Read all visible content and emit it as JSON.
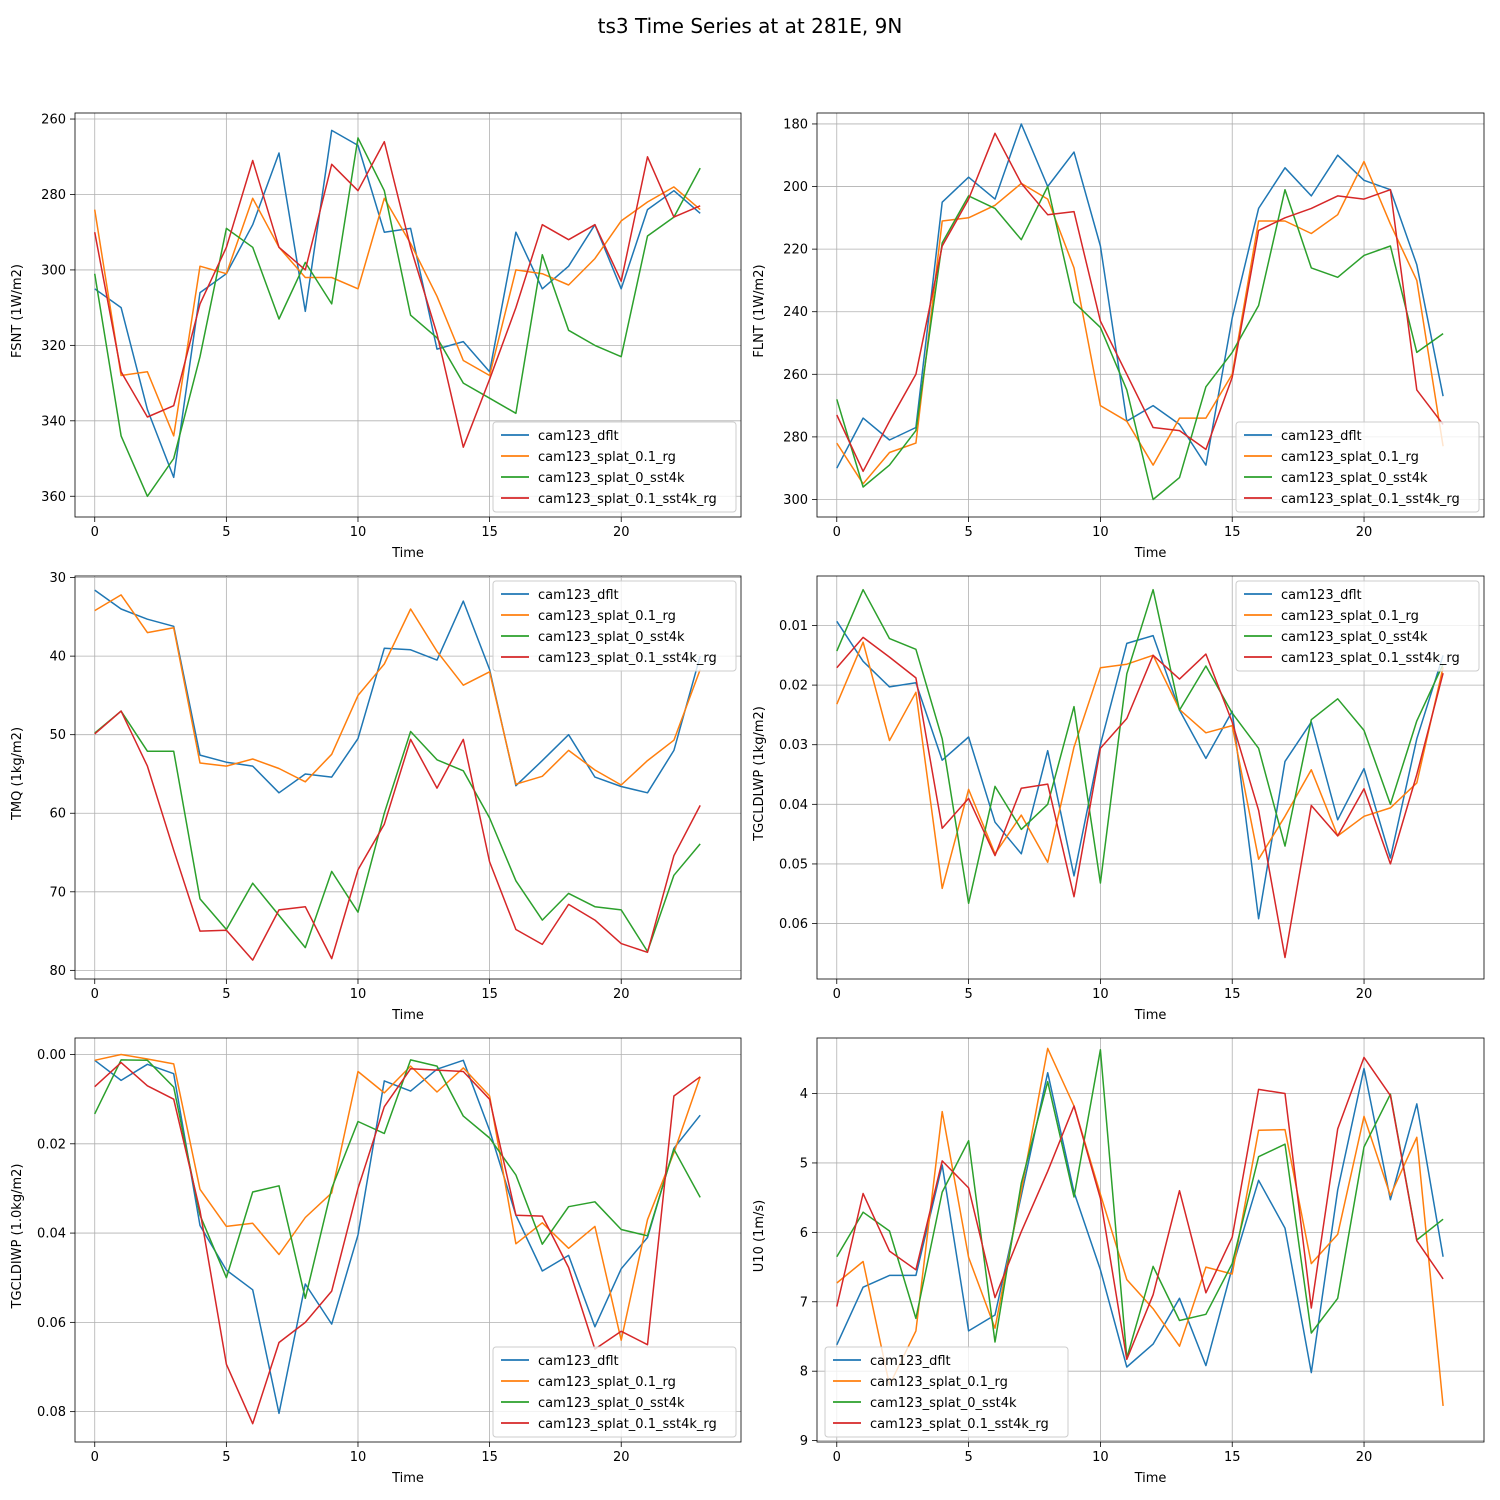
{
  "title": "ts3 Time Series at at 281E, 9N",
  "series_names": [
    "cam123_dflt",
    "cam123_splat_0.1_rg",
    "cam123_splat_0_sst4k",
    "cam123_splat_0.1_sst4k_rg"
  ],
  "colors": [
    "#1f77b4",
    "#ff7f0e",
    "#2ca02c",
    "#d62728"
  ],
  "chart_data": [
    {
      "type": "line",
      "ylabel": "FSNT (1W/m2)",
      "xlabel": "Time",
      "xlim": [
        -0.75,
        24.55
      ],
      "ylim": [
        365.5,
        258.4
      ],
      "y_inverted": true,
      "xticks": [
        0,
        5,
        10,
        15,
        20
      ],
      "yticks": [
        260,
        280,
        300,
        320,
        340,
        360
      ],
      "legend_loc": "lower-right",
      "series": [
        {
          "name": "cam123_dflt",
          "values": [
            305,
            310,
            337,
            355,
            306,
            301,
            288,
            269,
            311,
            263,
            267,
            290,
            289,
            321,
            319,
            327,
            290,
            305,
            299,
            288,
            305,
            284,
            279,
            285
          ]
        },
        {
          "name": "cam123_splat_0.1_rg",
          "values": [
            284,
            328,
            327,
            344,
            299,
            301,
            281,
            294,
            302,
            302,
            305,
            281,
            293,
            307,
            324,
            328,
            300,
            301,
            304,
            297,
            287,
            282,
            278,
            284
          ]
        },
        {
          "name": "cam123_splat_0_sst4k",
          "values": [
            301,
            344,
            360,
            350,
            323,
            289,
            294,
            313,
            298,
            309,
            265,
            279,
            312,
            318,
            330,
            334,
            338,
            296,
            316,
            320,
            323,
            291,
            286,
            273
          ]
        },
        {
          "name": "cam123_splat_0.1_sst4k_rg",
          "values": [
            290,
            327,
            339,
            336,
            309,
            294,
            271,
            294,
            300,
            272,
            279,
            266,
            294,
            317,
            347,
            329,
            310,
            288,
            292,
            288,
            303,
            270,
            286,
            283
          ]
        }
      ]
    },
    {
      "type": "line",
      "ylabel": "FLNT (1W/m2)",
      "xlabel": "Time",
      "xlim": [
        -0.75,
        24.55
      ],
      "ylim": [
        305.6,
        176.5
      ],
      "y_inverted": true,
      "xticks": [
        0,
        5,
        10,
        15,
        20
      ],
      "yticks": [
        180,
        200,
        220,
        240,
        260,
        280,
        300
      ],
      "legend_loc": "lower-right",
      "series": [
        {
          "name": "cam123_dflt",
          "values": [
            290,
            274,
            281,
            277,
            205,
            197,
            204,
            180,
            200,
            189,
            219,
            275,
            270,
            276,
            289,
            242,
            207,
            194,
            203,
            190,
            198,
            201,
            225,
            267
          ]
        },
        {
          "name": "cam123_splat_0.1_rg",
          "values": [
            282,
            295,
            285,
            282,
            211,
            210,
            206,
            199,
            204,
            226,
            270,
            275,
            289,
            274,
            274,
            260,
            211,
            211,
            215,
            209,
            192,
            212,
            230,
            283
          ]
        },
        {
          "name": "cam123_splat_0_sst4k",
          "values": [
            268,
            296,
            289,
            278,
            218,
            203,
            207,
            217,
            200,
            237,
            245,
            265,
            300,
            293,
            264,
            253,
            238,
            201,
            226,
            229,
            222,
            219,
            253,
            247
          ]
        },
        {
          "name": "cam123_splat_0.1_sst4k_rg",
          "values": [
            273,
            291,
            275,
            260,
            219,
            204,
            183,
            199,
            209,
            208,
            243,
            260,
            277,
            278,
            284,
            261,
            214,
            210,
            207,
            203,
            204,
            201,
            265,
            276
          ]
        }
      ]
    },
    {
      "type": "line",
      "ylabel": "TMQ (1kg/m2)",
      "xlabel": "Time",
      "xlim": [
        -0.75,
        24.55
      ],
      "ylim": [
        81.1,
        29.8
      ],
      "y_inverted": true,
      "xticks": [
        0,
        5,
        10,
        15,
        20
      ],
      "yticks": [
        30,
        40,
        50,
        60,
        70,
        80
      ],
      "legend_loc": "upper-right",
      "series": [
        {
          "name": "cam123_dflt",
          "values": [
            31.6,
            34.0,
            35.3,
            36.2,
            52.6,
            53.5,
            54.0,
            57.4,
            55.0,
            55.4,
            50.5,
            39.0,
            39.2,
            40.5,
            33.0,
            41.7,
            56.5,
            53.3,
            50.0,
            55.4,
            56.6,
            57.4,
            52.0,
            40.0
          ]
        },
        {
          "name": "cam123_splat_0.1_rg",
          "values": [
            34.2,
            32.2,
            37.0,
            36.4,
            53.6,
            54.0,
            53.1,
            54.3,
            56.0,
            52.5,
            45.0,
            41.0,
            34.0,
            39.4,
            43.7,
            42.0,
            56.3,
            55.3,
            52.0,
            54.5,
            56.4,
            53.3,
            50.7,
            41.7
          ]
        },
        {
          "name": "cam123_splat_0_sst4k",
          "values": [
            49.8,
            47.0,
            52.1,
            52.1,
            70.9,
            74.8,
            68.9,
            73.0,
            77.1,
            67.4,
            72.6,
            60.0,
            49.6,
            53.2,
            54.6,
            60.6,
            68.6,
            73.6,
            70.2,
            71.9,
            72.3,
            77.6,
            67.9,
            63.9
          ]
        },
        {
          "name": "cam123_splat_0.1_sst4k_rg",
          "values": [
            49.9,
            47.0,
            54.0,
            64.7,
            75.0,
            74.9,
            78.7,
            72.3,
            71.9,
            78.5,
            67.2,
            61.4,
            50.6,
            56.8,
            50.6,
            66.2,
            74.8,
            76.7,
            71.6,
            73.6,
            76.6,
            77.7,
            65.4,
            59.0
          ]
        }
      ]
    },
    {
      "type": "line",
      "ylabel": "TGCLDLWP (1kg/m2)",
      "xlabel": "Time",
      "xlim": [
        -0.75,
        24.55
      ],
      "ylim": [
        0.0693,
        0.0017
      ],
      "y_inverted": true,
      "xticks": [
        0,
        5,
        10,
        15,
        20
      ],
      "yticks": [
        0.01,
        0.02,
        0.03,
        0.04,
        0.05,
        0.06
      ],
      "legend_loc": "upper-right",
      "series": [
        {
          "name": "cam123_dflt",
          "values": [
            0.0093,
            0.016,
            0.0203,
            0.0196,
            0.0326,
            0.0287,
            0.043,
            0.0483,
            0.031,
            0.052,
            0.03,
            0.013,
            0.0117,
            0.0242,
            0.0323,
            0.0244,
            0.0592,
            0.0328,
            0.0262,
            0.0426,
            0.034,
            0.049,
            0.029,
            0.015
          ]
        },
        {
          "name": "cam123_splat_0.1_rg",
          "values": [
            0.0232,
            0.0128,
            0.0293,
            0.0212,
            0.0541,
            0.0375,
            0.0483,
            0.0418,
            0.0497,
            0.0304,
            0.0171,
            0.0165,
            0.015,
            0.0241,
            0.028,
            0.0268,
            0.0492,
            0.042,
            0.0342,
            0.0453,
            0.042,
            0.0406,
            0.0364,
            0.017
          ]
        },
        {
          "name": "cam123_splat_0_sst4k",
          "values": [
            0.0143,
            0.004,
            0.0122,
            0.014,
            0.029,
            0.0566,
            0.037,
            0.0442,
            0.04,
            0.0236,
            0.0532,
            0.0181,
            0.004,
            0.0242,
            0.0168,
            0.0247,
            0.0306,
            0.047,
            0.0258,
            0.0223,
            0.0276,
            0.04,
            0.026,
            0.0165
          ]
        },
        {
          "name": "cam123_splat_0.1_sst4k_rg",
          "values": [
            0.0171,
            0.012,
            0.0153,
            0.0188,
            0.044,
            0.039,
            0.0486,
            0.0373,
            0.0366,
            0.0555,
            0.0306,
            0.0256,
            0.015,
            0.019,
            0.0148,
            0.0262,
            0.041,
            0.0657,
            0.0402,
            0.0453,
            0.0374,
            0.05,
            0.035,
            0.018
          ]
        }
      ]
    },
    {
      "type": "line",
      "ylabel": "TGCLDIWP (1.0kg/m2)",
      "xlabel": "Time",
      "xlim": [
        -0.75,
        24.55
      ],
      "ylim": [
        0.0868,
        -0.0037
      ],
      "y_inverted": true,
      "xticks": [
        0,
        5,
        10,
        15,
        20
      ],
      "yticks": [
        0.0,
        0.02,
        0.04,
        0.06,
        0.08
      ],
      "ytick_labels": [
        "0.00",
        "0.02",
        "0.04",
        "0.06",
        "0.08"
      ],
      "legend_loc": "lower-right",
      "series": [
        {
          "name": "cam123_dflt",
          "values": [
            0.0013,
            0.0058,
            0.0022,
            0.0043,
            0.0383,
            0.0483,
            0.0527,
            0.0804,
            0.0514,
            0.0604,
            0.0404,
            0.0059,
            0.0082,
            0.0033,
            0.0013,
            0.017,
            0.036,
            0.0485,
            0.045,
            0.061,
            0.048,
            0.041,
            0.021,
            0.0136
          ]
        },
        {
          "name": "cam123_splat_0.1_rg",
          "values": [
            0.0013,
            0.0,
            0.001,
            0.0021,
            0.0302,
            0.0385,
            0.0378,
            0.0448,
            0.0365,
            0.031,
            0.0038,
            0.0086,
            0.0026,
            0.0084,
            0.003,
            0.0093,
            0.0424,
            0.0377,
            0.0434,
            0.0385,
            0.064,
            0.037,
            0.022,
            0.005
          ]
        },
        {
          "name": "cam123_splat_0_sst4k",
          "values": [
            0.0133,
            0.0012,
            0.0013,
            0.0073,
            0.036,
            0.05,
            0.0308,
            0.0294,
            0.0546,
            0.03,
            0.015,
            0.0177,
            0.0012,
            0.0026,
            0.0138,
            0.0187,
            0.027,
            0.0425,
            0.0341,
            0.033,
            0.0392,
            0.0406,
            0.0212,
            0.032
          ]
        },
        {
          "name": "cam123_splat_0.1_sst4k_rg",
          "values": [
            0.0072,
            0.0018,
            0.007,
            0.01,
            0.035,
            0.0694,
            0.0827,
            0.0645,
            0.06,
            0.053,
            0.03,
            0.0117,
            0.0032,
            0.0035,
            0.0038,
            0.01,
            0.036,
            0.0362,
            0.0477,
            0.066,
            0.062,
            0.065,
            0.0093,
            0.005
          ]
        }
      ]
    },
    {
      "type": "line",
      "ylabel": "U10 (1m/s)",
      "xlabel": "Time",
      "xlim": [
        -0.75,
        24.55
      ],
      "ylim": [
        9.02,
        3.2
      ],
      "y_inverted": true,
      "xticks": [
        0,
        5,
        10,
        15,
        20
      ],
      "yticks": [
        4,
        5,
        6,
        7,
        8,
        9
      ],
      "legend_loc": "lower-left",
      "series": [
        {
          "name": "cam123_dflt",
          "values": [
            7.62,
            6.79,
            6.62,
            6.62,
            5.03,
            7.42,
            7.19,
            5.47,
            3.7,
            5.42,
            6.54,
            7.94,
            7.61,
            6.95,
            7.92,
            6.51,
            5.25,
            5.94,
            8.02,
            5.39,
            3.64,
            5.53,
            4.15,
            6.35
          ]
        },
        {
          "name": "cam123_splat_0.1_rg",
          "values": [
            6.73,
            6.42,
            8.2,
            7.42,
            4.26,
            6.36,
            7.38,
            5.4,
            3.35,
            4.18,
            5.45,
            6.68,
            7.1,
            7.64,
            6.5,
            6.6,
            4.53,
            4.52,
            6.45,
            6.03,
            4.33,
            5.47,
            4.63,
            8.5
          ]
        },
        {
          "name": "cam123_splat_0_sst4k",
          "values": [
            6.35,
            5.71,
            5.98,
            7.24,
            5.42,
            4.68,
            7.58,
            5.29,
            3.83,
            5.49,
            3.37,
            7.81,
            6.49,
            7.27,
            7.18,
            6.45,
            4.91,
            4.73,
            7.45,
            6.95,
            4.77,
            4.01,
            6.11,
            5.81
          ]
        },
        {
          "name": "cam123_splat_0.1_sst4k_rg",
          "values": [
            7.07,
            5.44,
            6.27,
            6.54,
            4.97,
            5.36,
            6.94,
            5.99,
            5.12,
            4.18,
            5.51,
            7.83,
            6.9,
            5.4,
            6.87,
            6.07,
            3.94,
            4.0,
            7.09,
            4.51,
            3.48,
            4.03,
            6.12,
            6.67
          ]
        }
      ]
    }
  ]
}
